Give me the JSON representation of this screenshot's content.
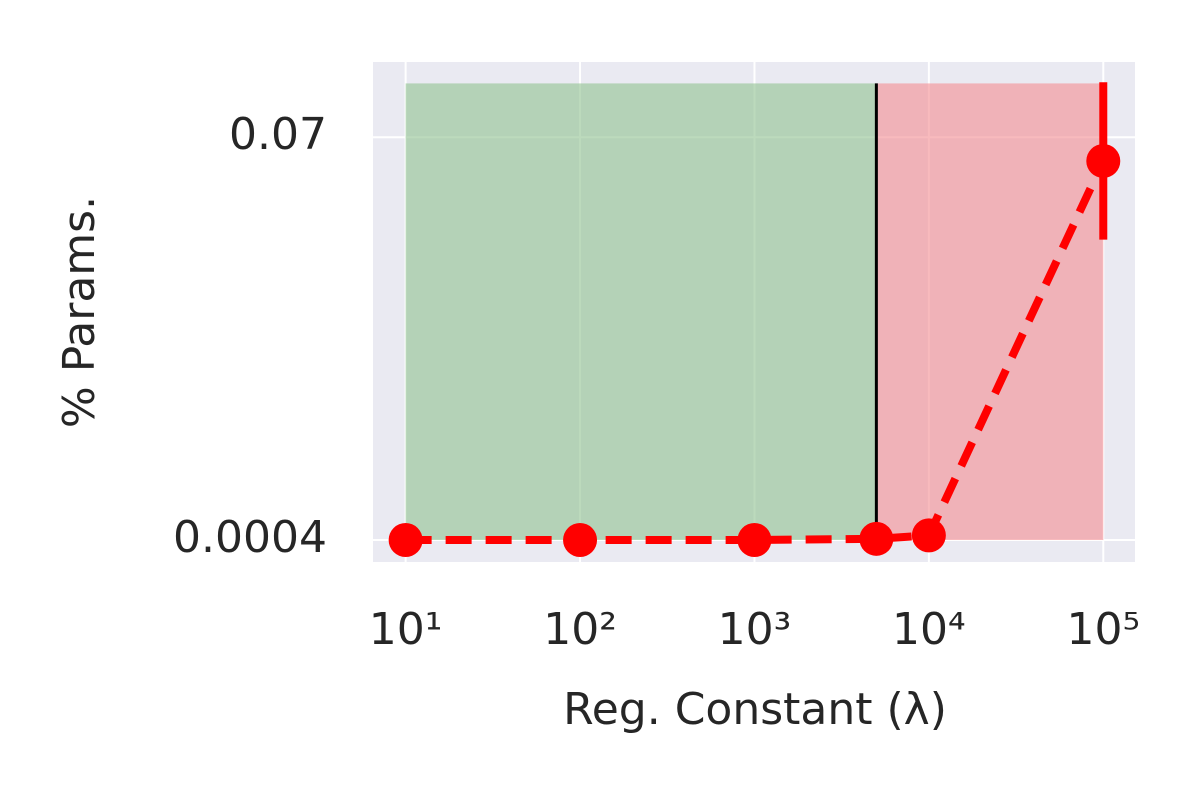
{
  "chart_data": {
    "type": "line",
    "x_label": "Reg. Constant (λ)",
    "y_label": "% Params.",
    "x": [
      10,
      100,
      1000,
      5000,
      10000,
      100000
    ],
    "series": [
      {
        "color": "#ff0000",
        "values": [
          0.0004,
          0.0004,
          0.0004,
          0.0006,
          0.0012,
          0.0659
        ],
        "errors": [
          0,
          0,
          0,
          0,
          0,
          0.0136
        ]
      }
    ],
    "regions": [
      {
        "from": 10,
        "to": 5000,
        "top": 0.0793,
        "bottom": 0.0004,
        "color": "#90c290"
      },
      {
        "from": 5000,
        "to": 100000,
        "top": 0.0793,
        "bottom": 0.0004,
        "color": "#f48c91"
      }
    ],
    "vline": 5000,
    "xscale": "log",
    "xlim": [
      6.5,
      152000
    ],
    "xticks": [
      {
        "value": 10,
        "label": "10¹"
      },
      {
        "value": 100,
        "label": "10²"
      },
      {
        "value": 1000,
        "label": "10³"
      },
      {
        "value": 10000,
        "label": "10⁴"
      },
      {
        "value": 100000,
        "label": "10⁵"
      }
    ],
    "ylim": [
      -0.0034,
      0.083
    ],
    "yticks": [
      0.0004,
      0.07
    ],
    "grid": true
  }
}
